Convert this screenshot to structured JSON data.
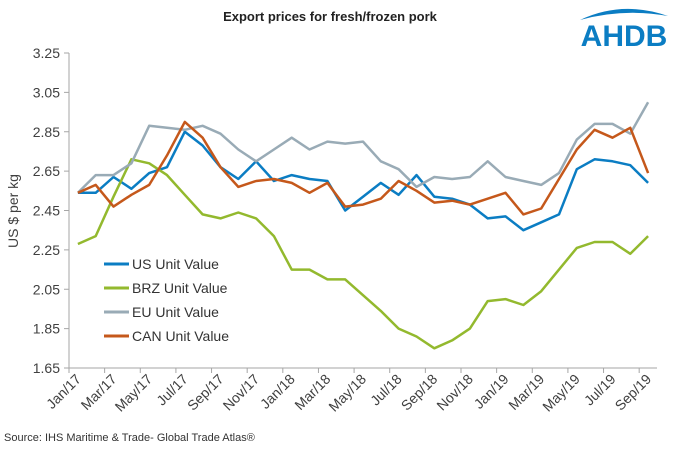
{
  "chart_data": {
    "type": "line",
    "title": "Export prices for fresh/frozen pork",
    "ylabel": "US $ per kg",
    "xlabel": "",
    "ylim": [
      1.65,
      3.25
    ],
    "yticks": [
      "1.65",
      "1.85",
      "2.05",
      "2.25",
      "2.45",
      "2.65",
      "2.85",
      "3.05",
      "3.25"
    ],
    "grid": false,
    "legend_placement": "lower-left",
    "x": [
      "Jan/17",
      "Feb/17",
      "Mar/17",
      "Apr/17",
      "May/17",
      "Jun/17",
      "Jul/17",
      "Aug/17",
      "Sep/17",
      "Oct/17",
      "Nov/17",
      "Dec/17",
      "Jan/18",
      "Feb/18",
      "Mar/18",
      "Apr/18",
      "May/18",
      "Jun/18",
      "Jul/18",
      "Aug/18",
      "Sep/18",
      "Oct/18",
      "Nov/18",
      "Dec/18",
      "Jan/19",
      "Feb/19",
      "Mar/19",
      "Apr/19",
      "May/19",
      "Jun/19",
      "Jul/19",
      "Aug/19",
      "Sep/19"
    ],
    "xtick_labels": [
      "Jan/17",
      "Mar/17",
      "May/17",
      "Jul/17",
      "Sep/17",
      "Nov/17",
      "Jan/18",
      "Mar/18",
      "May/18",
      "Jul/18",
      "Sep/18",
      "Nov/18",
      "Jan/19",
      "Mar/19",
      "May/19",
      "Jul/19",
      "Sep/19"
    ],
    "series": [
      {
        "name": "US Unit Value",
        "color": "#0b7dc3",
        "values": [
          2.54,
          2.54,
          2.62,
          2.56,
          2.64,
          2.67,
          2.85,
          2.78,
          2.67,
          2.61,
          2.7,
          2.6,
          2.63,
          2.61,
          2.6,
          2.45,
          2.52,
          2.59,
          2.53,
          2.63,
          2.52,
          2.51,
          2.48,
          2.41,
          2.42,
          2.35,
          2.39,
          2.43,
          2.66,
          2.71,
          2.7,
          2.68,
          2.59
        ]
      },
      {
        "name": "BRZ Unit Value",
        "color": "#93b92e",
        "values": [
          2.28,
          2.32,
          2.52,
          2.71,
          2.69,
          2.63,
          2.53,
          2.43,
          2.41,
          2.44,
          2.41,
          2.32,
          2.15,
          2.15,
          2.1,
          2.1,
          2.02,
          1.94,
          1.85,
          1.81,
          1.75,
          1.79,
          1.85,
          1.99,
          2.0,
          1.97,
          2.04,
          2.15,
          2.26,
          2.29,
          2.29,
          2.23,
          2.32
        ]
      },
      {
        "name": "EU Unit Value",
        "color": "#99abb6",
        "values": [
          2.54,
          2.63,
          2.63,
          2.69,
          2.88,
          2.87,
          2.86,
          2.88,
          2.84,
          2.76,
          2.7,
          2.76,
          2.82,
          2.76,
          2.8,
          2.79,
          2.8,
          2.7,
          2.66,
          2.57,
          2.62,
          2.61,
          2.62,
          2.7,
          2.62,
          2.6,
          2.58,
          2.64,
          2.81,
          2.89,
          2.89,
          2.84,
          3.0
        ]
      },
      {
        "name": "CAN Unit Value",
        "color": "#c5581b",
        "values": [
          2.54,
          2.58,
          2.47,
          2.53,
          2.58,
          2.73,
          2.9,
          2.82,
          2.67,
          2.57,
          2.6,
          2.61,
          2.59,
          2.54,
          2.59,
          2.47,
          2.48,
          2.51,
          2.6,
          2.55,
          2.49,
          2.5,
          2.48,
          2.51,
          2.54,
          2.43,
          2.46,
          2.61,
          2.76,
          2.86,
          2.82,
          2.87,
          2.64
        ]
      }
    ]
  },
  "logo": {
    "text": "AHDB",
    "color": "#0b7dc3"
  },
  "source": "Source: IHS Maritime & Trade-  Global Trade  Atlas®"
}
